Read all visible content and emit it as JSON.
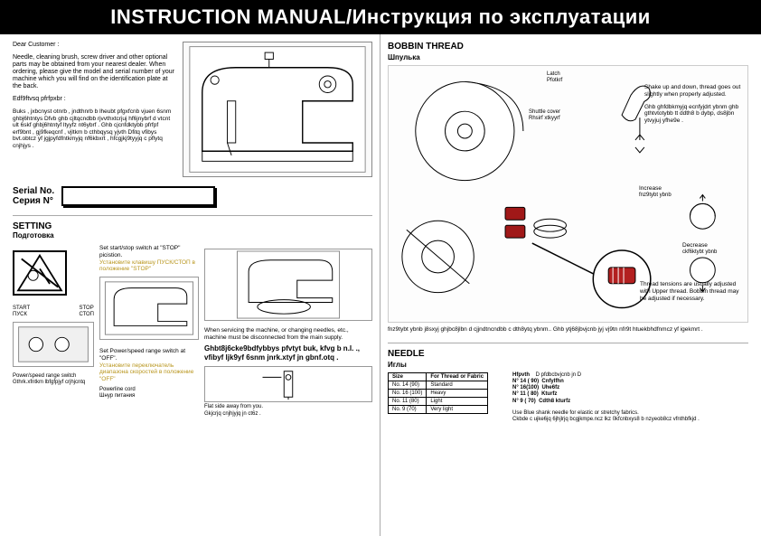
{
  "title_en": "INSTRUCTION MANUAL",
  "title_sep": " / ",
  "title_ru": "Инструкция по эксплуатации",
  "intro": {
    "greeting": "Dear Customer :",
    "p1": "Needle, cleaning brush, screw driver and other optional parts may be obtained from your nearest dealer. When ordering, please give the model and serial number of your machine which you will find on the identification plate at the back.",
    "p2": "Edf9ftvsq   pfrfpxbr :",
    "p3": "Buks , jxbcnyst  otnrb , jndthnrb  b lheubt pfgxfcnb  vjuen  6snm ghbj6htntys   Dfvb ghb cjltqcndbb   rjvvthxtcrjuj     hf6jnybrf   d vtcnt  ult  6skf  ghbj6htntyf  ltyyfz  nt6ybrf . Ghb cjcnfdktybb  pfrfpf  erf9bnt , gj9fkeqcnf , vjltkm  b cthbqysq  yjvth Dfitq   vfibys    bvt.obtcz     yf  jgjpyfdfntkmyjq     nf6kbxrt , hfcgjkj9tyyjq c pflytq   cnjhjys .",
    "serial_label_en": "Serial No.",
    "serial_label_ru": "Серия N°"
  },
  "setting": {
    "head_en": "SETTING",
    "head_ru": "Подготовка",
    "col1": "Set start/stop switch at \"STOP\" picistion.",
    "col1_ru": "Установите клавишу ПУСК/СТОП в положение \"STOP\"",
    "start_en": "START",
    "start_ru": "ПУСК",
    "stop_en": "STOP",
    "stop_ru": "СТОП",
    "col2": "Set Power/speed range switch at \"OFF\".",
    "col2_ru": "Установите переключатель диапазона скоростей в положение \"OFF\"",
    "power_label_en": "Power/speed range switch",
    "power_label_ru": "Gthrk.xfntkm lbfgfpjyf   crjhjcntq",
    "cord_en": "Powerline cord",
    "cord_ru": "Шнур питания",
    "service_en": "When servicing the machine, or changing needles, etc., machine must be disconnected from the main supply.",
    "service_mix": "Ghbt8j6cke9bdfybbys pfvtyt buk, kfvg  b n.l. ., vfibyf     ljk9yf      6snm jnrk.xtyf    jn  gbnf.otq .",
    "flat_en": "Flat side away from you.",
    "flat_ru": "Gkjcrjq   cnjhjyjq   jn  ct6z ."
  },
  "bobbin": {
    "head_en": "BOBBIN THREAD",
    "head_ru": "Шпулька",
    "latch": "Latch",
    "latch_ru": "Pfotkrf",
    "shuttle": "Shuttle cover",
    "shuttle_ru": "Rhsirf    xtkyyrf",
    "shake": "Shake up and down, thread goes out slightly when properly adjusted.",
    "shake_ru": "Ghb ghfdbkmyjq ecnfyjdrt   ybnm ghb gthtvtotybb    tt ddth8 b  dybp, ds8jbn ytvyjuj    yfhe9e .",
    "increase": "Increase",
    "increase_ru": "fnz9tybt    ybnb",
    "decrease": "Decrease",
    "decrease_ru": "ckf6ktybt    ybnb",
    "tension": "Thread tensions are usually adjusted with Upper thread. Bobbin thread may be adjusted if necessary.",
    "tension_ru": " fnz9tybt   ybnb  j8sxyj ghjbc8jlbn   d cjjndtncndbb  c dth8ytq  ybnm.. Ghb ytj68jbvjcnb    jyj   vj9tn nfr9t   htuekbhdfnmcz  yf  igekmrt ."
  },
  "needle": {
    "head_en": "NEEDLE",
    "head_ru": "Иглы",
    "table": {
      "headers": [
        "Size",
        "For Thread or Fabric"
      ],
      "rows": [
        [
          "No. 14    (90)",
          "Standard"
        ],
        [
          "No. 16  (100)",
          "Heavy"
        ],
        [
          "No. 11    (80)",
          "Light"
        ],
        [
          "No.   9    (70)",
          "Very light"
        ]
      ]
    },
    "codes_head": "Hfpvth",
    "codes_head2": "D  pfdbcbvjcnb    jn D",
    "codes": [
      [
        "N° 14  ( 90)",
        "Cnfylfhn"
      ],
      [
        "N° 16(100)",
        "Uhe6fz"
      ],
      [
        "N° 11 ( 80)",
        "Kturfz"
      ],
      [
        "N°   9  ( 70)",
        "Cdth8  kturfz"
      ]
    ],
    "note_en": "Use Blue shank needle for elastic or stretchy fabrics.",
    "note_ru": "Ckbde  c ujke6jq   6jhjlrjq    bcgjkmpe.ncz lkz  0kfcnbxys8  b  nzyeob8cz  vfnthbfkjd   ."
  }
}
